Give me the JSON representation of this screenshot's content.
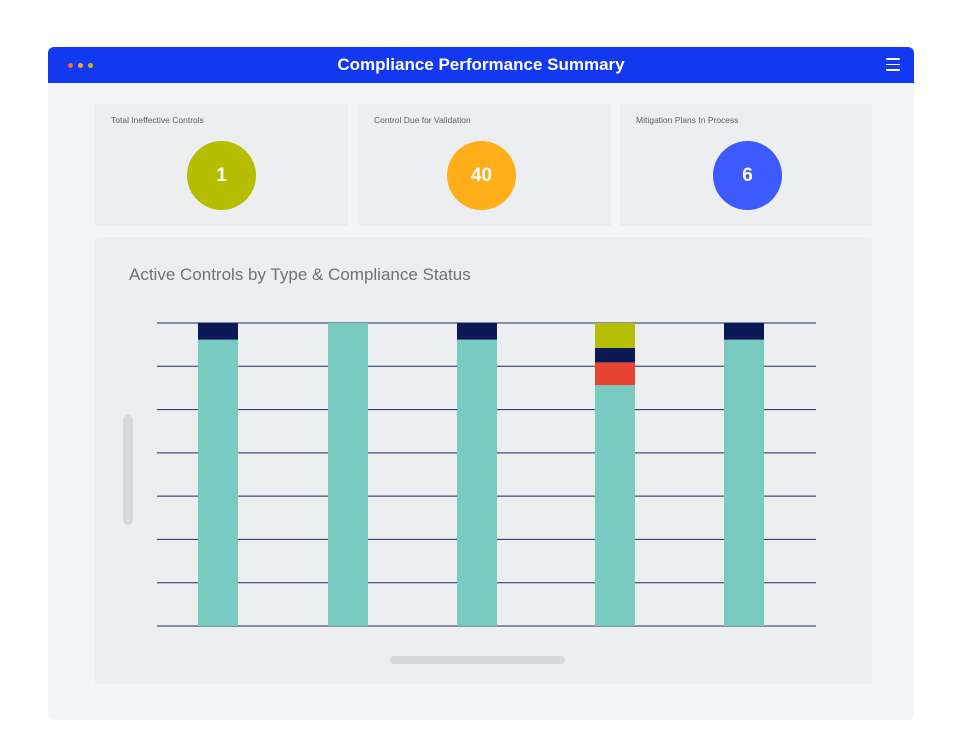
{
  "window": {
    "title": "Compliance Performance Summary",
    "dot_colors": [
      "#f26b3a",
      "#f5a623",
      "#b9c400"
    ],
    "icons": {
      "menu": "hamburger-menu-icon"
    }
  },
  "kpis": [
    {
      "label": "Total Ineffective Controls",
      "value": "1",
      "color": "#b5be00"
    },
    {
      "label": "Control Due for Validation",
      "value": "40",
      "color": "#ffae19"
    },
    {
      "label": "Mitigation Plans In Process",
      "value": "6",
      "color": "#3d5afe"
    }
  ],
  "chart_data": {
    "type": "bar",
    "stacked": true,
    "title": "Active Controls by Type & Compliance Status",
    "xlabel": "",
    "ylabel": "",
    "categories": [
      "",
      "",
      "",
      "",
      ""
    ],
    "ylim": [
      0,
      100
    ],
    "grid": true,
    "legend": "none",
    "series": [
      {
        "color": "#79cbc2",
        "values": [
          94.5,
          100,
          94.5,
          79.5,
          94.5
        ]
      },
      {
        "color": "#e64430",
        "values": [
          0,
          0,
          0,
          7.5,
          0
        ]
      },
      {
        "color": "#0b1a57",
        "values": [
          5.5,
          0,
          5.5,
          4.8,
          5.5
        ]
      },
      {
        "color": "#b5be00",
        "values": [
          0,
          0,
          0,
          8.2,
          0
        ]
      }
    ]
  }
}
